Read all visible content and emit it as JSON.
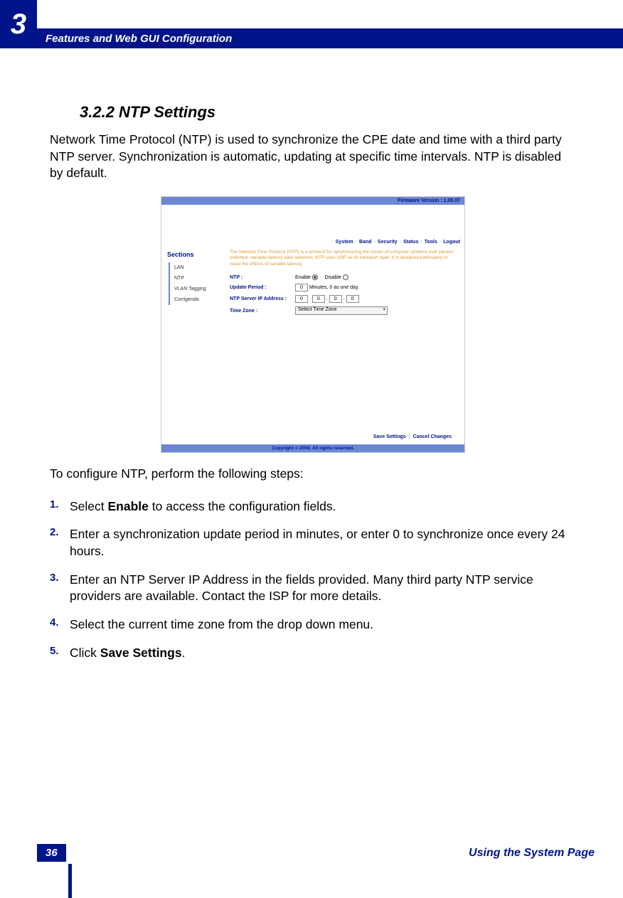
{
  "header": {
    "chapter_num": "3",
    "chapter_title": "Features and Web GUI Configuration"
  },
  "section": {
    "heading": "3.2.2 NTP Settings",
    "intro": "Network Time Protocol (NTP) is used to synchronize the CPE date and time with a third party NTP server. Synchronization is automatic, updating at specific time intervals. NTP is disabled by default.",
    "after_img": "To configure NTP, perform the following steps:"
  },
  "screenshot": {
    "firmware": "Firmware Version : 1.00.07",
    "nav": [
      "System",
      "Band",
      "Security",
      "Status",
      "Tools",
      "Logout"
    ],
    "sections_title": "Sections",
    "side_items": [
      "LAN",
      "NTP",
      "VLAN Tagging",
      "Corrigenda"
    ],
    "desc": "The Network Time Protocol (NTP) is a protocol for synchronizing the clocks of computer systems over packet-switched, variable-latency data networks. NTP uses UDP as its transport layer. It is designed particularly to resist the effects of variable latency.",
    "rows": {
      "ntp_label": "NTP :",
      "enable": "Enable",
      "disable": "Disable",
      "update_label": "Update Period :",
      "update_val": "0",
      "update_suffix": "Minutes, 0 as one day.",
      "ip_label": "NTP Server IP Address :",
      "ip_parts": [
        "0",
        "0",
        "0",
        "0"
      ],
      "tz_label": "Time Zone :",
      "tz_val": "Select Time Zone"
    },
    "actions_save": "Save Settings",
    "actions_cancel": "Cancel Changes",
    "copyright": "Copyright © 2008.  All rights reserved."
  },
  "steps": [
    {
      "num": "1.",
      "pre": "Select ",
      "bold": "Enable",
      "post": " to access the configuration fields."
    },
    {
      "num": "2.",
      "pre": "Enter a synchronization update period in minutes, or enter 0 to synchronize once every 24 hours.",
      "bold": "",
      "post": ""
    },
    {
      "num": "3.",
      "pre": "Enter an NTP Server IP Address in the fields provided. Many third party NTP service providers are available. Contact the ISP for more details.",
      "bold": "",
      "post": ""
    },
    {
      "num": "4.",
      "pre": "Select the current time zone from the drop down menu.",
      "bold": "",
      "post": ""
    },
    {
      "num": "5.",
      "pre": "Click ",
      "bold": "Save Settings",
      "post": "."
    }
  ],
  "footer": {
    "page": "36",
    "title": "Using the System Page"
  }
}
